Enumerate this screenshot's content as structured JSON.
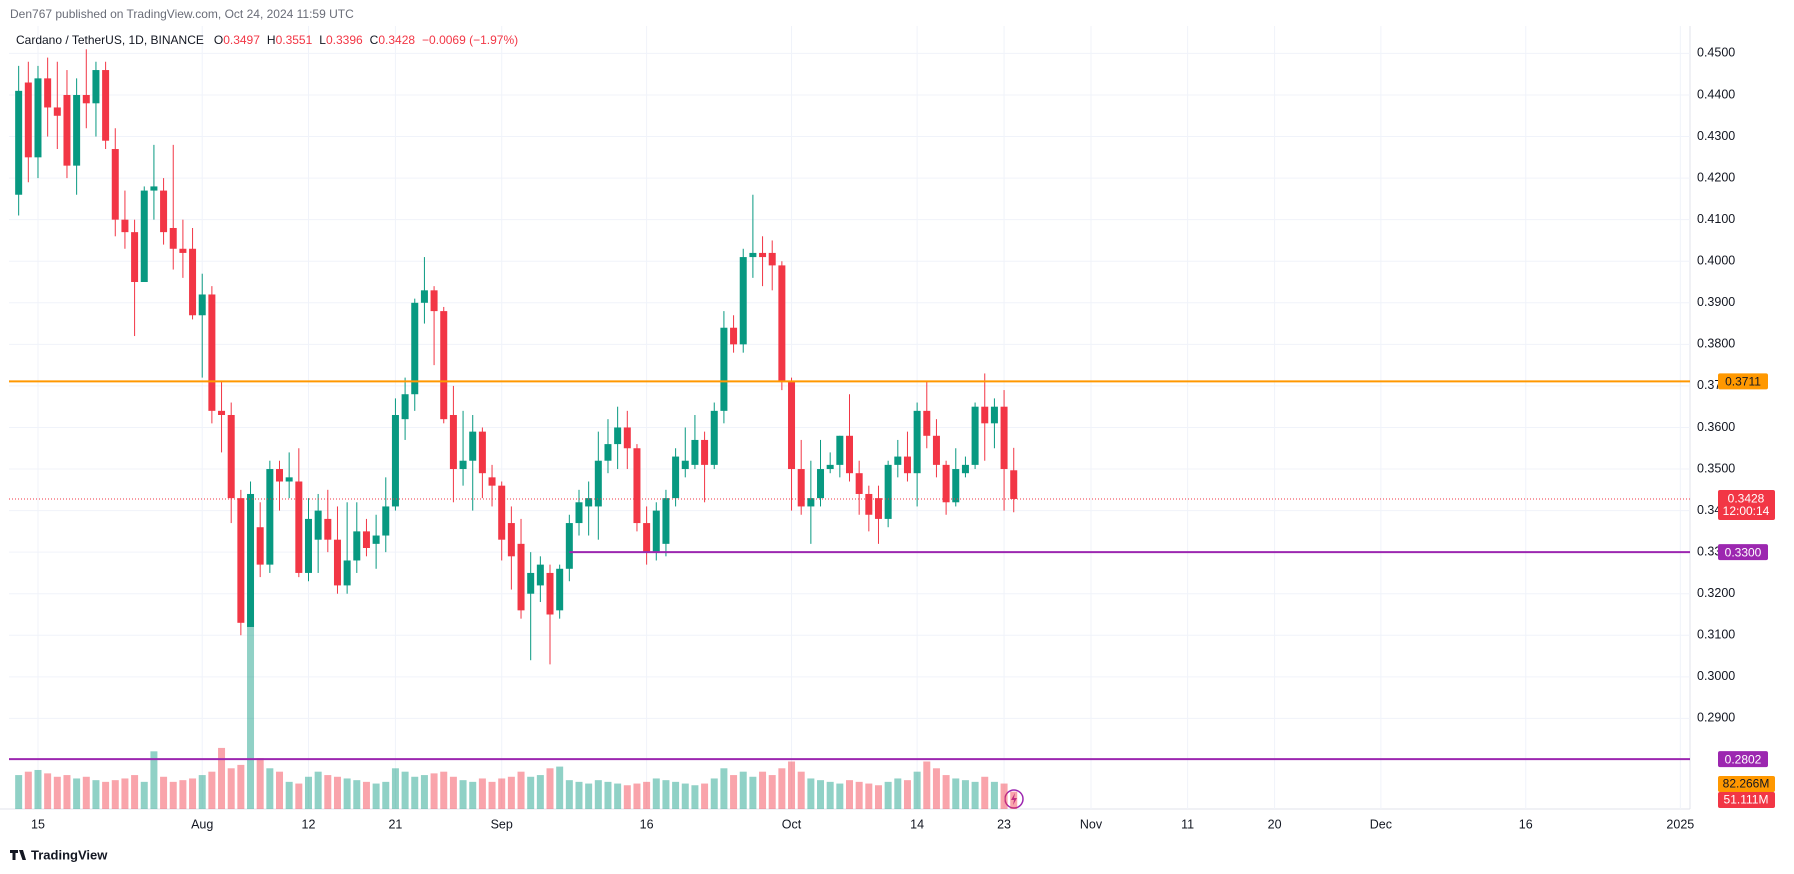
{
  "chart_data": {
    "type": "candlestick",
    "attribution": "Den767 published on TradingView.com, Oct 24, 2024 11:59 UTC",
    "symbol": "Cardano / TetherUS, 1D, BINANCE",
    "ohlc_letters": [
      "O",
      "H",
      "L",
      "C"
    ],
    "change_text": "−0.0069 (−1.97%)",
    "countdown": "12:00:14",
    "logo": "TradingView",
    "up_color": "#089981",
    "down_color": "#f23645",
    "x": [
      "2024-07-13",
      "2024-07-14",
      "2024-07-15",
      "2024-07-16",
      "2024-07-17",
      "2024-07-18",
      "2024-07-19",
      "2024-07-20",
      "2024-07-21",
      "2024-07-22",
      "2024-07-23",
      "2024-07-24",
      "2024-07-25",
      "2024-07-26",
      "2024-07-27",
      "2024-07-28",
      "2024-07-29",
      "2024-07-30",
      "2024-07-31",
      "2024-08-01",
      "2024-08-02",
      "2024-08-03",
      "2024-08-04",
      "2024-08-05",
      "2024-08-06",
      "2024-08-07",
      "2024-08-08",
      "2024-08-09",
      "2024-08-10",
      "2024-08-11",
      "2024-08-12",
      "2024-08-13",
      "2024-08-14",
      "2024-08-15",
      "2024-08-16",
      "2024-08-17",
      "2024-08-18",
      "2024-08-19",
      "2024-08-20",
      "2024-08-21",
      "2024-08-22",
      "2024-08-23",
      "2024-08-24",
      "2024-08-25",
      "2024-08-26",
      "2024-08-27",
      "2024-08-28",
      "2024-08-29",
      "2024-08-30",
      "2024-08-31",
      "2024-09-01",
      "2024-09-02",
      "2024-09-03",
      "2024-09-04",
      "2024-09-05",
      "2024-09-06",
      "2024-09-07",
      "2024-09-08",
      "2024-09-09",
      "2024-09-10",
      "2024-09-11",
      "2024-09-12",
      "2024-09-13",
      "2024-09-14",
      "2024-09-15",
      "2024-09-16",
      "2024-09-17",
      "2024-09-18",
      "2024-09-19",
      "2024-09-20",
      "2024-09-21",
      "2024-09-22",
      "2024-09-23",
      "2024-09-24",
      "2024-09-25",
      "2024-09-26",
      "2024-09-27",
      "2024-09-28",
      "2024-09-29",
      "2024-09-30",
      "2024-10-01",
      "2024-10-02",
      "2024-10-03",
      "2024-10-04",
      "2024-10-05",
      "2024-10-06",
      "2024-10-07",
      "2024-10-08",
      "2024-10-09",
      "2024-10-10",
      "2024-10-11",
      "2024-10-12",
      "2024-10-13",
      "2024-10-14",
      "2024-10-15",
      "2024-10-16",
      "2024-10-17",
      "2024-10-18",
      "2024-10-19",
      "2024-10-20",
      "2024-10-21",
      "2024-10-22",
      "2024-10-23",
      "2024-10-24"
    ],
    "open": [
      0.416,
      0.443,
      0.425,
      0.444,
      0.437,
      0.44,
      0.423,
      0.44,
      0.438,
      0.446,
      0.427,
      0.41,
      0.407,
      0.395,
      0.417,
      0.417,
      0.408,
      0.403,
      0.403,
      0.387,
      0.392,
      0.364,
      0.363,
      0.343,
      0.312,
      0.336,
      0.327,
      0.35,
      0.347,
      0.347,
      0.325,
      0.333,
      0.338,
      0.333,
      0.322,
      0.328,
      0.335,
      0.332,
      0.334,
      0.341,
      0.362,
      0.368,
      0.39,
      0.393,
      0.388,
      0.363,
      0.35,
      0.352,
      0.359,
      0.348,
      0.346,
      0.337,
      0.332,
      0.32,
      0.322,
      0.325,
      0.316,
      0.326,
      0.337,
      0.341,
      0.341,
      0.352,
      0.356,
      0.36,
      0.355,
      0.337,
      0.33,
      0.332,
      0.343,
      0.35,
      0.351,
      0.357,
      0.351,
      0.364,
      0.384,
      0.38,
      0.401,
      0.402,
      0.402,
      0.399,
      0.371,
      0.35,
      0.341,
      0.343,
      0.35,
      0.351,
      0.358,
      0.349,
      0.344,
      0.343,
      0.338,
      0.351,
      0.353,
      0.349,
      0.364,
      0.358,
      0.351,
      0.342,
      0.349,
      0.351,
      0.365,
      0.361,
      0.365,
      0.3497
    ],
    "high": [
      0.447,
      0.448,
      0.447,
      0.449,
      0.448,
      0.446,
      0.444,
      0.451,
      0.448,
      0.448,
      0.432,
      0.417,
      0.41,
      0.418,
      0.428,
      0.42,
      0.428,
      0.41,
      0.408,
      0.397,
      0.394,
      0.371,
      0.366,
      0.345,
      0.347,
      0.342,
      0.352,
      0.352,
      0.354,
      0.355,
      0.343,
      0.344,
      0.345,
      0.341,
      0.342,
      0.342,
      0.338,
      0.339,
      0.348,
      0.367,
      0.372,
      0.391,
      0.401,
      0.394,
      0.389,
      0.37,
      0.364,
      0.363,
      0.36,
      0.351,
      0.347,
      0.341,
      0.338,
      0.33,
      0.329,
      0.327,
      0.327,
      0.339,
      0.345,
      0.347,
      0.359,
      0.362,
      0.365,
      0.364,
      0.356,
      0.341,
      0.342,
      0.345,
      0.355,
      0.36,
      0.363,
      0.359,
      0.366,
      0.388,
      0.387,
      0.403,
      0.416,
      0.406,
      0.405,
      0.4,
      0.372,
      0.357,
      0.352,
      0.357,
      0.354,
      0.358,
      0.368,
      0.352,
      0.346,
      0.346,
      0.352,
      0.357,
      0.359,
      0.366,
      0.371,
      0.362,
      0.352,
      0.355,
      0.353,
      0.366,
      0.373,
      0.367,
      0.369,
      0.3551
    ],
    "low": [
      0.411,
      0.419,
      0.42,
      0.43,
      0.427,
      0.42,
      0.416,
      0.432,
      0.43,
      0.427,
      0.406,
      0.403,
      0.382,
      0.395,
      0.41,
      0.404,
      0.398,
      0.396,
      0.386,
      0.372,
      0.361,
      0.354,
      0.337,
      0.31,
      0.312,
      0.324,
      0.325,
      0.34,
      0.343,
      0.324,
      0.323,
      0.325,
      0.33,
      0.32,
      0.32,
      0.325,
      0.329,
      0.326,
      0.33,
      0.34,
      0.357,
      0.364,
      0.385,
      0.375,
      0.361,
      0.342,
      0.346,
      0.34,
      0.343,
      0.341,
      0.328,
      0.321,
      0.314,
      0.304,
      0.318,
      0.303,
      0.314,
      0.323,
      0.334,
      0.334,
      0.333,
      0.349,
      0.35,
      0.35,
      0.335,
      0.327,
      0.328,
      0.329,
      0.341,
      0.348,
      0.35,
      0.342,
      0.35,
      0.361,
      0.378,
      0.378,
      0.396,
      0.394,
      0.393,
      0.369,
      0.34,
      0.339,
      0.332,
      0.341,
      0.349,
      0.348,
      0.347,
      0.339,
      0.335,
      0.332,
      0.336,
      0.348,
      0.347,
      0.341,
      0.355,
      0.348,
      0.339,
      0.341,
      0.348,
      0.35,
      0.352,
      0.355,
      0.34,
      0.3396
    ],
    "close": [
      0.441,
      0.425,
      0.444,
      0.437,
      0.435,
      0.423,
      0.44,
      0.438,
      0.446,
      0.429,
      0.41,
      0.407,
      0.395,
      0.417,
      0.418,
      0.407,
      0.403,
      0.402,
      0.387,
      0.392,
      0.364,
      0.363,
      0.343,
      0.313,
      0.344,
      0.327,
      0.35,
      0.347,
      0.348,
      0.325,
      0.338,
      0.34,
      0.333,
      0.322,
      0.328,
      0.335,
      0.331,
      0.334,
      0.341,
      0.363,
      0.368,
      0.39,
      0.393,
      0.388,
      0.362,
      0.35,
      0.352,
      0.359,
      0.349,
      0.346,
      0.333,
      0.329,
      0.316,
      0.325,
      0.327,
      0.315,
      0.326,
      0.337,
      0.342,
      0.343,
      0.352,
      0.356,
      0.36,
      0.355,
      0.337,
      0.33,
      0.34,
      0.343,
      0.353,
      0.352,
      0.357,
      0.351,
      0.364,
      0.384,
      0.38,
      0.401,
      0.402,
      0.401,
      0.399,
      0.371,
      0.35,
      0.341,
      0.343,
      0.35,
      0.351,
      0.358,
      0.349,
      0.344,
      0.339,
      0.338,
      0.351,
      0.353,
      0.349,
      0.364,
      0.358,
      0.351,
      0.342,
      0.35,
      0.351,
      0.365,
      0.361,
      0.365,
      0.35,
      0.3428
    ],
    "volume": [
      100,
      110,
      115,
      105,
      95,
      100,
      90,
      95,
      85,
      80,
      85,
      90,
      100,
      80,
      170,
      95,
      80,
      85,
      90,
      100,
      110,
      180,
      120,
      130,
      550,
      150,
      120,
      110,
      80,
      75,
      95,
      110,
      100,
      95,
      90,
      85,
      80,
      75,
      80,
      120,
      110,
      95,
      100,
      105,
      110,
      95,
      85,
      80,
      90,
      80,
      90,
      95,
      110,
      95,
      100,
      120,
      125,
      85,
      80,
      75,
      85,
      80,
      75,
      70,
      75,
      80,
      90,
      85,
      80,
      75,
      70,
      75,
      90,
      120,
      100,
      110,
      95,
      110,
      100,
      120,
      140,
      110,
      90,
      85,
      80,
      75,
      85,
      80,
      75,
      70,
      80,
      90,
      85,
      110,
      140,
      120,
      100,
      90,
      85,
      80,
      95,
      80,
      75,
      51.111
    ],
    "volume_label": "51.111M",
    "volume_ma": 82.266,
    "volume_ma_label": "82.266M",
    "vlim": [
      0,
      560
    ],
    "xlim": [
      "2024-07-12",
      "2025-01-02"
    ],
    "xticks": [
      {
        "value": "2024-07-15",
        "label": "15"
      },
      {
        "value": "2024-08-01",
        "label": "Aug"
      },
      {
        "value": "2024-08-12",
        "label": "12"
      },
      {
        "value": "2024-08-21",
        "label": "21"
      },
      {
        "value": "2024-09-01",
        "label": "Sep"
      },
      {
        "value": "2024-09-16",
        "label": "16"
      },
      {
        "value": "2024-10-01",
        "label": "Oct"
      },
      {
        "value": "2024-10-14",
        "label": "14"
      },
      {
        "value": "2024-10-23",
        "label": "23"
      },
      {
        "value": "2024-11-01",
        "label": "Nov"
      },
      {
        "value": "2024-11-11",
        "label": "11"
      },
      {
        "value": "2024-11-20",
        "label": "20"
      },
      {
        "value": "2024-12-01",
        "label": "Dec"
      },
      {
        "value": "2024-12-16",
        "label": "16"
      },
      {
        "value": "2025-01-01",
        "label": "2025"
      }
    ],
    "ylim": [
      0.2682,
      0.4566
    ],
    "yticks": [
      {
        "value": 0.29,
        "label": "0.2900"
      },
      {
        "value": 0.3,
        "label": "0.3000"
      },
      {
        "value": 0.31,
        "label": "0.3100"
      },
      {
        "value": 0.32,
        "label": "0.3200"
      },
      {
        "value": 0.33,
        "label": "0.3300"
      },
      {
        "value": 0.34,
        "label": "0.3400"
      },
      {
        "value": 0.35,
        "label": "0.3500"
      },
      {
        "value": 0.36,
        "label": "0.3600"
      },
      {
        "value": 0.37,
        "label": "0.3700"
      },
      {
        "value": 0.38,
        "label": "0.3800"
      },
      {
        "value": 0.39,
        "label": "0.3900"
      },
      {
        "value": 0.4,
        "label": "0.4000"
      },
      {
        "value": 0.41,
        "label": "0.4100"
      },
      {
        "value": 0.42,
        "label": "0.4200"
      },
      {
        "value": 0.43,
        "label": "0.4300"
      },
      {
        "value": 0.44,
        "label": "0.4400"
      },
      {
        "value": 0.45,
        "label": "0.4500"
      }
    ],
    "grid": true,
    "levels": [
      {
        "value": 0.3711,
        "color": "#ff9800",
        "text_color": "#131722"
      },
      {
        "value": 0.33,
        "label": "0.3300",
        "color": "#9c27b0",
        "text_color": "#ffffff",
        "start": "2024-09-08"
      },
      {
        "value": 0.2802,
        "color": "#9c27b0",
        "text_color": "#ffffff"
      }
    ]
  }
}
